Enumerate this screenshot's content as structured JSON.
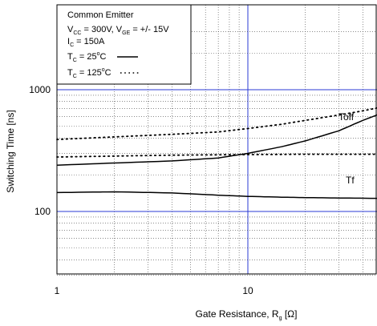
{
  "chart_data": {
    "type": "line",
    "title": "",
    "xlabel": {
      "text": "Gate Resistance, R",
      "sub": "g",
      "unit": " [Ω]"
    },
    "ylabel": "Switching Time [ns]",
    "xscale": "log",
    "yscale": "log",
    "xlim": [
      1,
      50
    ],
    "ylim": [
      30,
      3000
    ],
    "x_ticks": [
      {
        "value": 1,
        "label": "1"
      },
      {
        "value": 10,
        "label": "10"
      }
    ],
    "y_ticks": [
      {
        "value": 100,
        "label": "100"
      },
      {
        "value": 1000,
        "label": "1000"
      }
    ],
    "grid": true,
    "legend_position": "top-left",
    "legend": {
      "line1": "Common Emitter",
      "line2": {
        "v1": "V",
        "s1": "CC",
        "t1": " = 300V, V",
        "s2": "GE",
        "t2": " = +/- 15V"
      },
      "line3": {
        "v": "I",
        "s": "C",
        "t": " = 150A"
      },
      "line4": {
        "v": "T",
        "s": "C",
        "t1": " = 25",
        "sup": "o",
        "t2": "C"
      },
      "line5": {
        "v": "T",
        "s": "C",
        "t1": " = 125",
        "sup": "o",
        "t2": "C"
      }
    },
    "series_labels": [
      "Toff",
      "Tf"
    ],
    "series": [
      {
        "condition": "Toff 25C",
        "style": "solid",
        "x": [
          1,
          2,
          4,
          7,
          10,
          15,
          20,
          30,
          40,
          50
        ],
        "y": [
          240,
          250,
          260,
          275,
          300,
          340,
          380,
          460,
          560,
          640
        ]
      },
      {
        "condition": "Toff 125C",
        "style": "dotted",
        "x": [
          1,
          2,
          4,
          7,
          10,
          15,
          20,
          30,
          40,
          50
        ],
        "y": [
          390,
          410,
          430,
          450,
          480,
          520,
          560,
          620,
          670,
          720
        ]
      },
      {
        "condition": "Tf 125C",
        "style": "dotted",
        "x": [
          1,
          2,
          4,
          7,
          10,
          20,
          30,
          50
        ],
        "y": [
          280,
          285,
          290,
          292,
          293,
          295,
          295,
          295
        ]
      },
      {
        "condition": "Tf 25C",
        "style": "solid",
        "x": [
          1,
          2,
          4,
          7,
          10,
          15,
          20,
          30,
          50
        ],
        "y": [
          143,
          145,
          142,
          136,
          133,
          131,
          130,
          129,
          128
        ]
      }
    ]
  }
}
